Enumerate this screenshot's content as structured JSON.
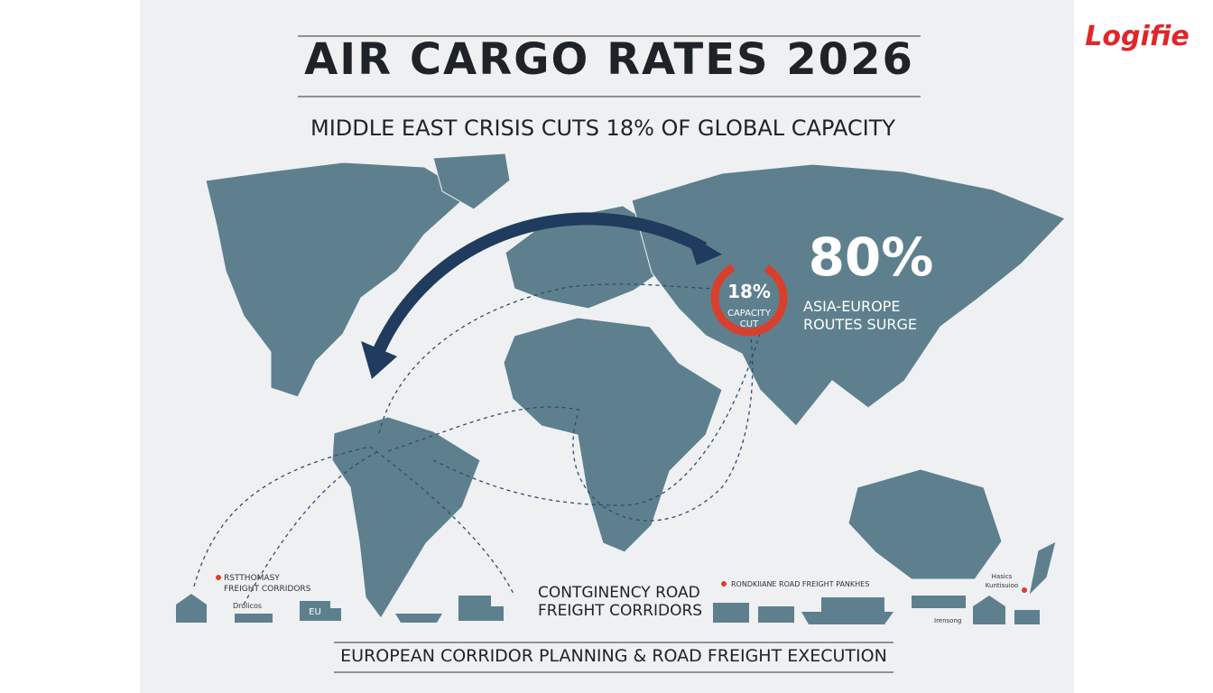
{
  "logo": "Logifie",
  "header": {
    "title": "AIR CARGO RATES 2026",
    "subtitle": "MIDDLE EAST CRISIS CUTS 18% OF GLOBAL CAPACITY"
  },
  "callouts": {
    "gauge": {
      "value": "18%",
      "label_1": "CAPACITY",
      "label_2": "CUT"
    },
    "surge": {
      "value": "80%",
      "label_1": "ASIA-EUROPE",
      "label_2": "ROUTES SURGE"
    }
  },
  "corridors": {
    "left": {
      "line_1": "RSTTHOMASY",
      "line_2": "FREIGHT CORRIDORS",
      "line_3": "Drolicos",
      "truck": "EU"
    },
    "center": {
      "line_1": "CONTGINENCY ROAD",
      "line_2": "FREIGHT CORRIDORS"
    },
    "right": {
      "line_1": "RONDKIIANE ROAD FREIGHT PANKHES",
      "hub_1": "Hasics",
      "hub_2": "Kuntisuioo",
      "hub_3": "Irensong"
    }
  },
  "footer": "EUROPEAN CORRIDOR PLANNING & ROAD FREIGHT EXECUTION"
}
